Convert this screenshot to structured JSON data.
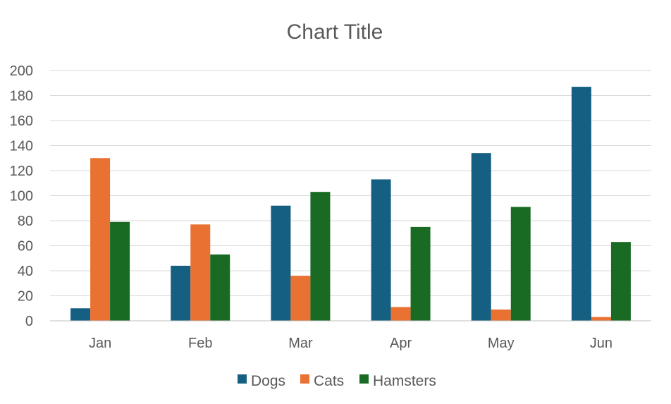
{
  "chart_data": {
    "type": "bar",
    "title": "Chart Title",
    "xlabel": "",
    "ylabel": "",
    "categories": [
      "Jan",
      "Feb",
      "Mar",
      "Apr",
      "May",
      "Jun"
    ],
    "series": [
      {
        "name": "Dogs",
        "color": "#156082",
        "values": [
          10,
          44,
          92,
          113,
          134,
          187
        ]
      },
      {
        "name": "Cats",
        "color": "#E97132",
        "values": [
          130,
          77,
          36,
          11,
          9,
          3
        ]
      },
      {
        "name": "Hamsters",
        "color": "#196B24",
        "values": [
          79,
          53,
          103,
          75,
          91,
          63
        ]
      }
    ],
    "ylim": [
      0,
      200
    ],
    "yticks": [
      0,
      20,
      40,
      60,
      80,
      100,
      120,
      140,
      160,
      180,
      200
    ],
    "grid": true,
    "legend_position": "bottom"
  }
}
